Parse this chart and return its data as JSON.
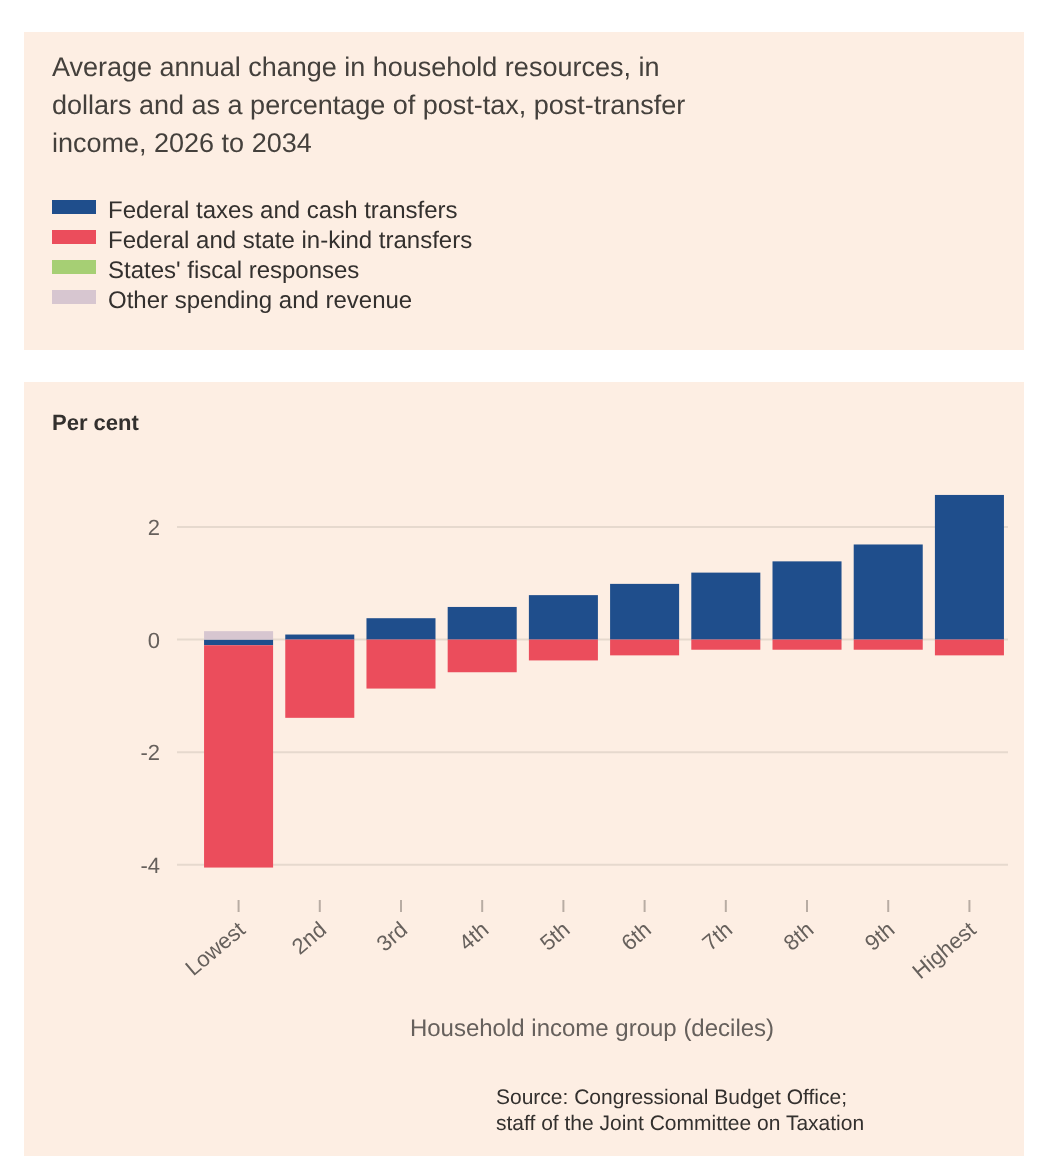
{
  "chart_data": {
    "type": "bar",
    "title": "Average annual change in household resources, in dollars and as a percentage of post-tax, post-transfer income, 2026 to 2034",
    "ylabel": "Per cent",
    "xlabel": "Household income group (deciles)",
    "annotations": [
      "Source: Congressional Budget Office; staff of the Joint Committee on Taxation"
    ],
    "categories": [
      "Lowest",
      "2nd",
      "3rd",
      "4th",
      "5th",
      "6th",
      "7th",
      "8th",
      "9th",
      "Highest"
    ],
    "series": [
      {
        "name": "Federal taxes and cash transfers",
        "color": "#1f4e8c",
        "values": [
          -0.1,
          0.09,
          0.38,
          0.58,
          0.79,
          0.99,
          1.19,
          1.39,
          1.69,
          2.57
        ]
      },
      {
        "name": "Federal and state in-kind transfers",
        "color": "#eb4d5c",
        "values": [
          -3.95,
          -1.39,
          -0.87,
          -0.58,
          -0.37,
          -0.28,
          -0.18,
          -0.18,
          -0.18,
          -0.28
        ]
      },
      {
        "name": "States' fiscal responses",
        "color": "#a6cf74",
        "values": [
          0,
          0,
          0,
          0,
          0,
          0,
          0,
          0,
          0,
          0
        ]
      },
      {
        "name": "Other spending and revenue",
        "color": "#d7c6d0",
        "values": [
          0.15,
          0,
          0,
          0,
          0,
          0,
          0,
          0,
          0,
          0
        ]
      }
    ],
    "stacked": true,
    "ylim": [
      -4.2,
      2.8
    ],
    "yticks": [
      -4,
      -2,
      0,
      2
    ],
    "grid": "y",
    "legend": "top"
  }
}
